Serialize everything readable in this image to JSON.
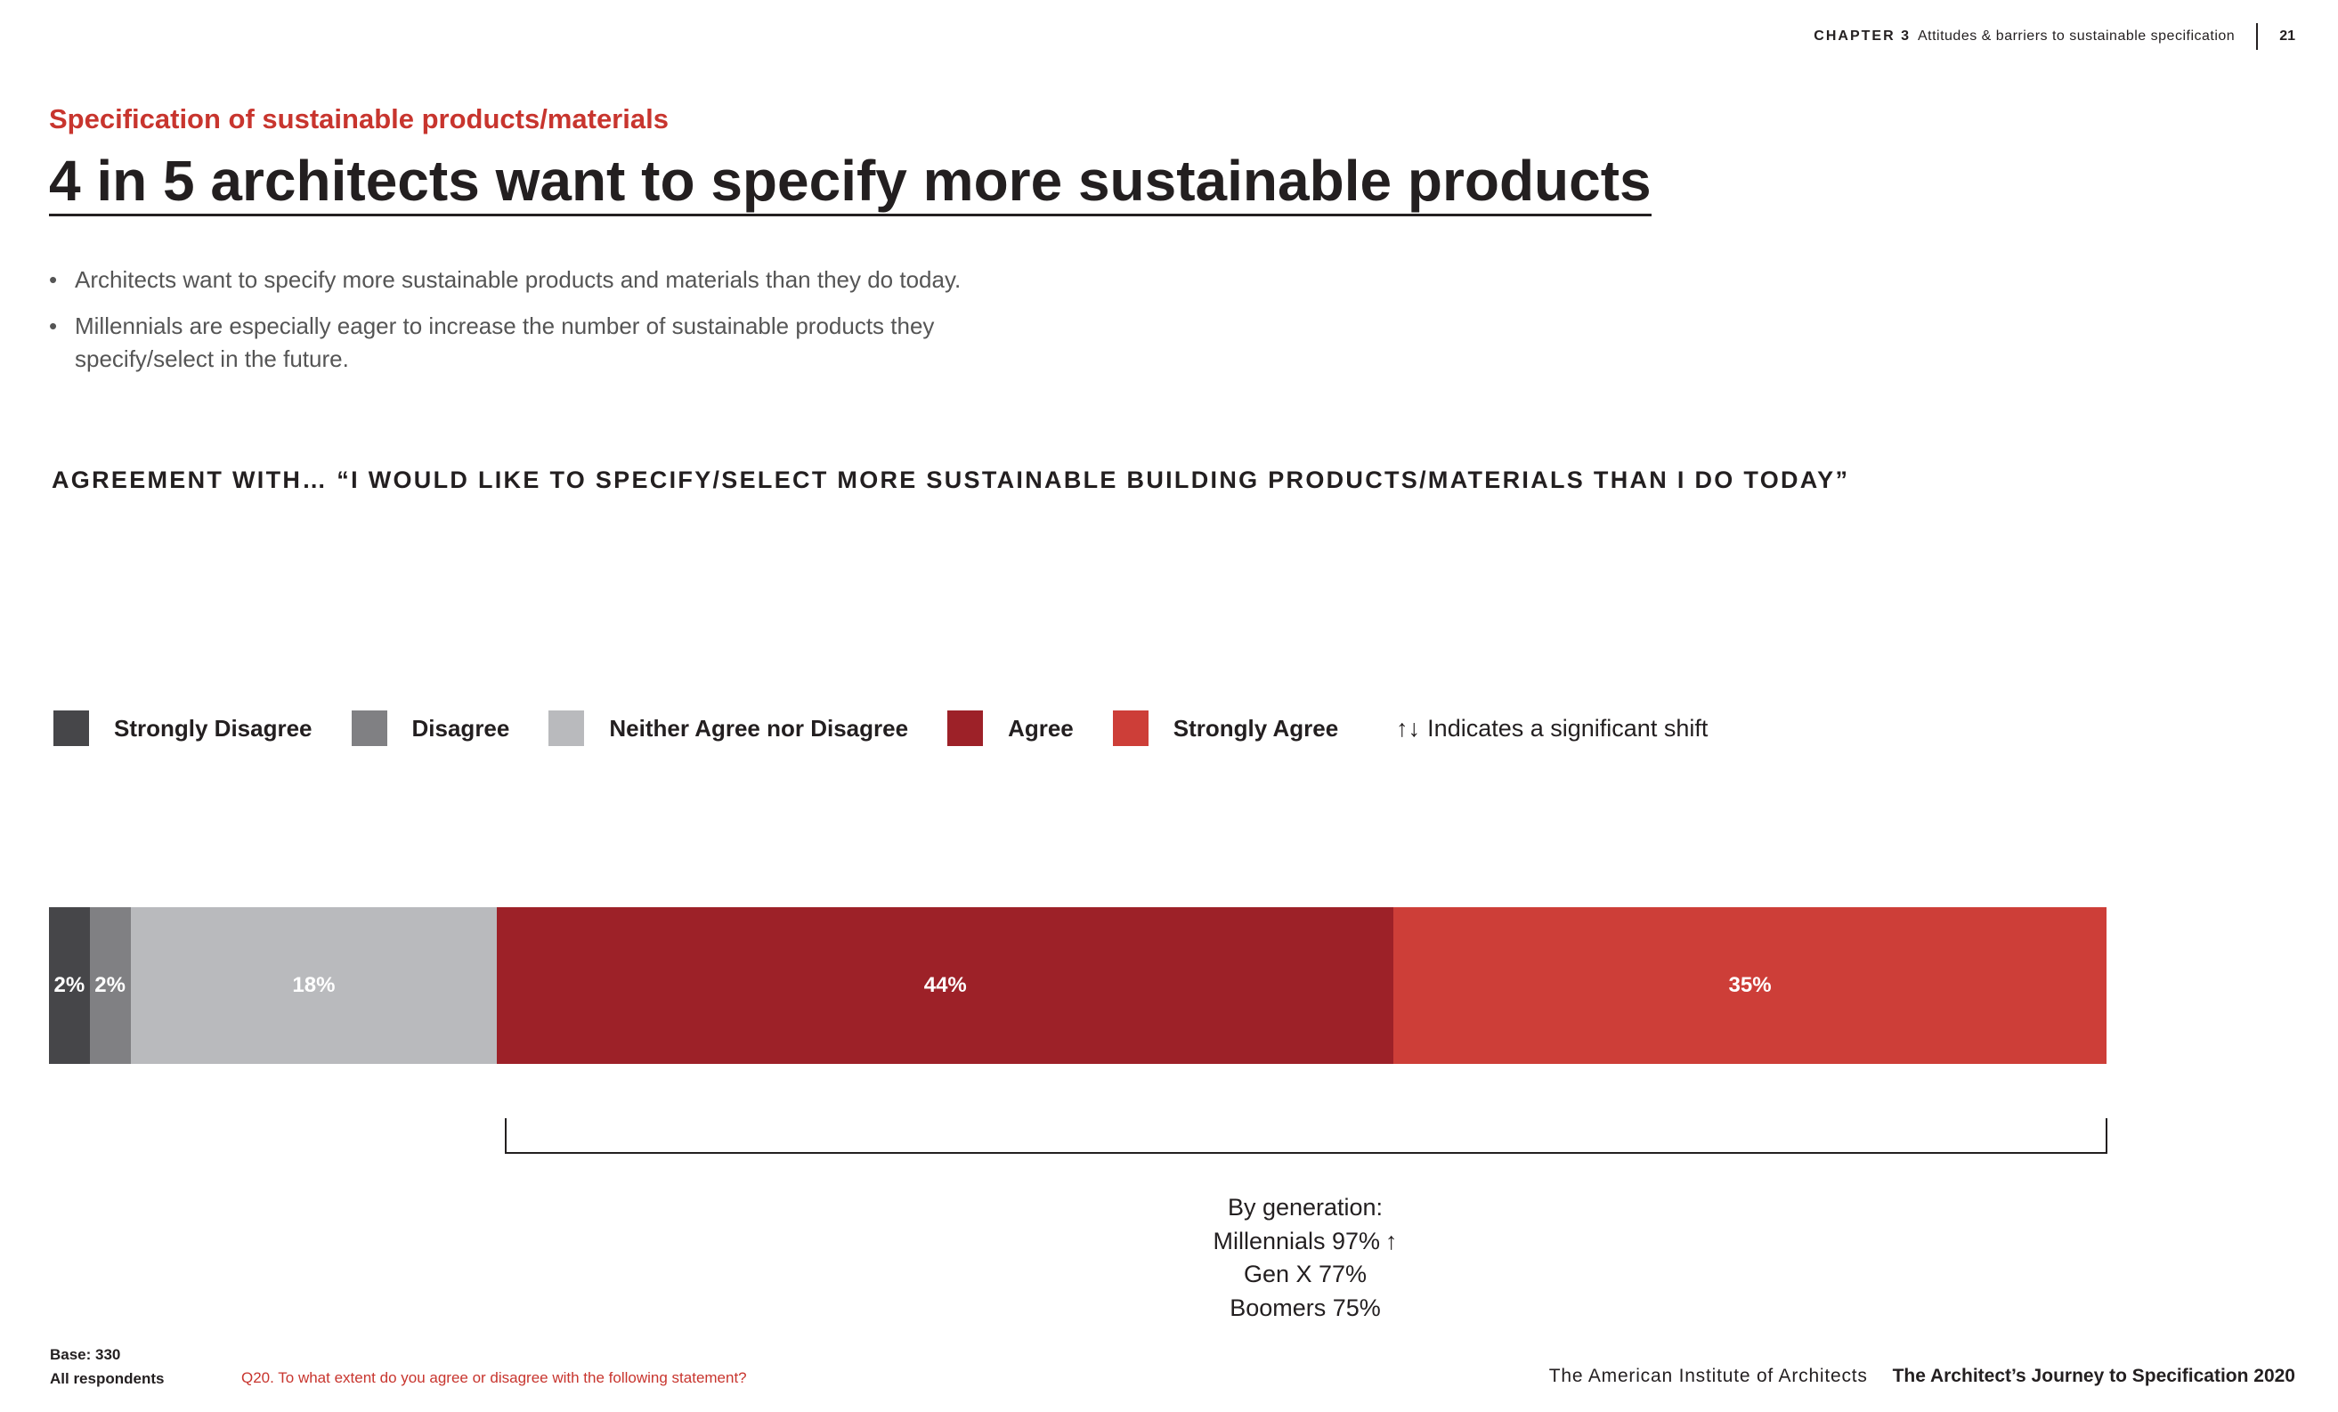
{
  "header": {
    "chapter_label": "CHAPTER 3",
    "chapter_title": "Attitudes & barriers to sustainable specification",
    "page_number": "21"
  },
  "subtitle": "Specification of sustainable products/materials",
  "title": "4 in 5 architects want to specify more sustainable products",
  "bullets": [
    "Architects want to specify more sustainable products and materials than they do today.",
    "Millennials are especially eager to increase the number of sustainable products they specify/select in the future."
  ],
  "chart_heading": "AGREEMENT WITH… “I WOULD LIKE TO SPECIFY/SELECT MORE SUSTAINABLE BUILDING PRODUCTS/MATERIALS THAN I DO TODAY”",
  "legend_note": {
    "icon": "up-down-arrows-icon",
    "arrows": "↑↓",
    "text": "Indicates a significant shift"
  },
  "chart_data": {
    "type": "bar",
    "orientation": "horizontal-stacked-100",
    "title": "AGREEMENT WITH… “I WOULD LIKE TO SPECIFY/SELECT MORE SUSTAINABLE BUILDING PRODUCTS/MATERIALS THAN I DO TODAY”",
    "series": [
      {
        "name": "Strongly Disagree",
        "value": 2,
        "label": "2%",
        "color": "#464649"
      },
      {
        "name": "Disagree",
        "value": 2,
        "label": "2%",
        "color": "#808083"
      },
      {
        "name": "Neither Agree nor Disagree",
        "value": 18,
        "label": "18%",
        "color": "#b9babd"
      },
      {
        "name": "Agree",
        "value": 44,
        "label": "44%",
        "color": "#9d2128"
      },
      {
        "name": "Strongly Agree",
        "value": 35,
        "label": "35%",
        "color": "#cd3e38"
      }
    ],
    "legend_position": "top-left",
    "grid": false
  },
  "generation": {
    "heading": "By generation:",
    "rows": [
      {
        "label": "Millennials 97%",
        "arrow": "↑",
        "arrow_icon": "up-arrow-icon"
      },
      {
        "label": "Gen X 77%",
        "arrow": ""
      },
      {
        "label": "Boomers 75%",
        "arrow": ""
      }
    ]
  },
  "base": {
    "line1": "Base: 330",
    "line2": "All respondents"
  },
  "question": "Q20. To what extent do you agree or disagree with the following statement?",
  "footer": {
    "org": "The American Institute of Architects",
    "report": "The Architect’s Journey to Specification 2020"
  },
  "colors": {
    "accent": "#c8352e",
    "text": "#231f20"
  }
}
